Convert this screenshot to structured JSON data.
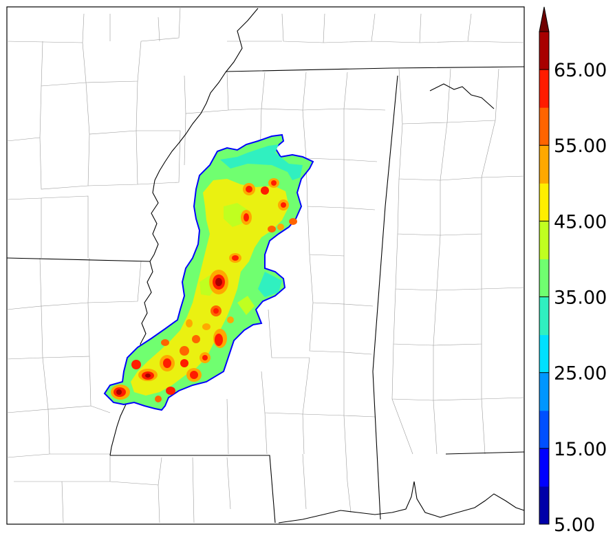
{
  "colorbar": {
    "labels": [
      "5.00",
      "15.00",
      "25.00",
      "35.00",
      "45.00",
      "55.00",
      "65.00"
    ],
    "min": 5,
    "max": 70,
    "step": 5,
    "extend": "max",
    "colors": [
      "#0000a8",
      "#0000ff",
      "#0050ff",
      "#0096ff",
      "#00e0ff",
      "#30f0c0",
      "#70ff70",
      "#c0ff20",
      "#ffee00",
      "#ffa800",
      "#ff6400",
      "#ff1c00",
      "#a80000",
      "#700000"
    ]
  },
  "map": {
    "field_colors": {
      "edge": "#0000ff",
      "low": "#30f0c0",
      "mid": "#70ff70",
      "mid2": "#c0ff20",
      "high": "#ffee00",
      "orange": "#ffa800",
      "red": "#ff1c00",
      "darkred": "#a80000"
    },
    "boundary_color": "#000000",
    "county_color": "#9a9a9a"
  }
}
